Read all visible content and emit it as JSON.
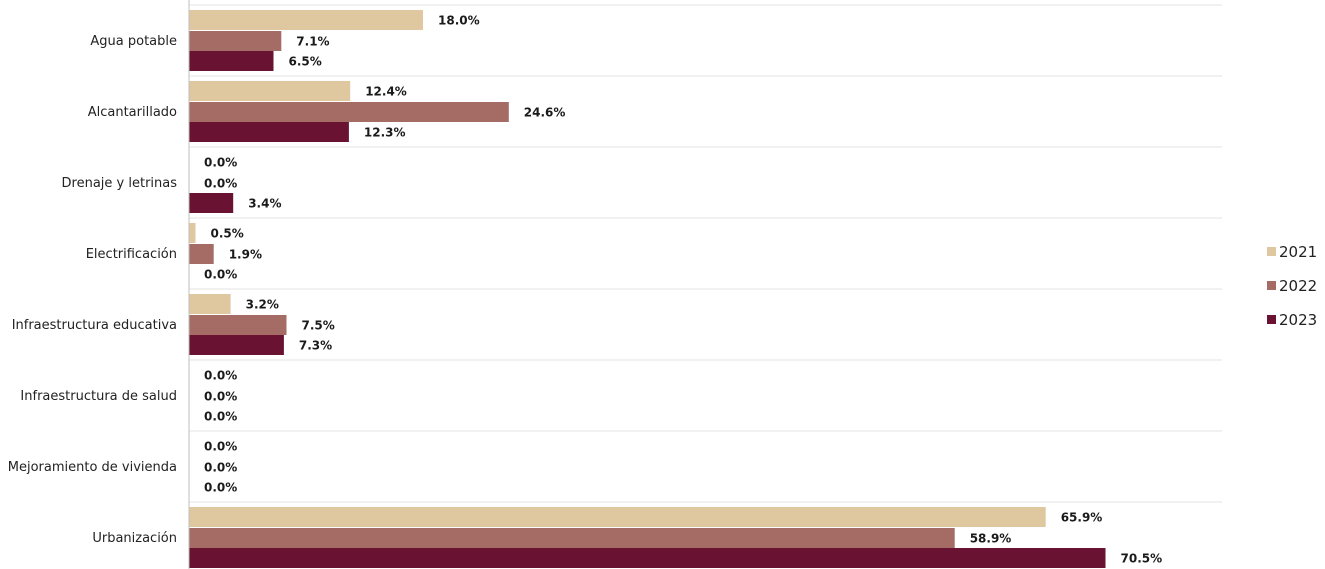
{
  "chart_data": {
    "type": "bar",
    "orientation": "horizontal",
    "categories": [
      "Agua potable",
      "Alcantarillado",
      "Drenaje y letrinas",
      "Electrificación",
      "Infraestructura educativa",
      "Infraestructura de salud",
      "Mejoramiento de vivienda",
      "Urbanización"
    ],
    "series": [
      {
        "name": "2021",
        "color": "#dfc8a0",
        "values": [
          18.0,
          12.4,
          0.0,
          0.5,
          3.2,
          0.0,
          0.0,
          65.9
        ],
        "labels": [
          "18.0%",
          "12.4%",
          "0.0%",
          "0.5%",
          "3.2%",
          "0.0%",
          "0.0%",
          "65.9%"
        ]
      },
      {
        "name": "2022",
        "color": "#a56b65",
        "values": [
          7.1,
          24.6,
          0.0,
          1.9,
          7.5,
          0.0,
          0.0,
          58.9
        ],
        "labels": [
          "7.1%",
          "24.6%",
          "0.0%",
          "1.9%",
          "7.5%",
          "0.0%",
          "0.0%",
          "58.9%"
        ]
      },
      {
        "name": "2023",
        "color": "#6a1232",
        "values": [
          6.5,
          12.3,
          3.4,
          0.0,
          7.3,
          0.0,
          0.0,
          70.5
        ],
        "labels": [
          "6.5%",
          "12.3%",
          "3.4%",
          "0.0%",
          "7.3%",
          "0.0%",
          "0.0%",
          "70.5%"
        ]
      }
    ],
    "xlim": [
      0,
      80
    ],
    "grid": true,
    "legend_position": "right"
  }
}
